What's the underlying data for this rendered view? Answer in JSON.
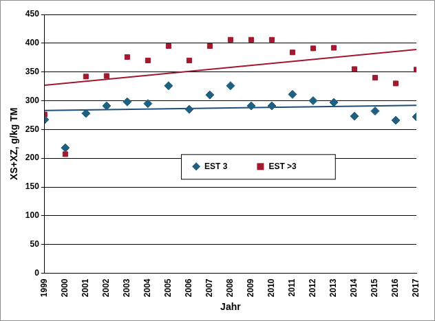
{
  "chart_data": {
    "type": "scatter",
    "x_label": "Jahr",
    "y_label": "XS+XZ, g/kg TM",
    "x": [
      1999,
      2000,
      2001,
      2002,
      2003,
      2004,
      2005,
      2006,
      2007,
      2008,
      2009,
      2010,
      2011,
      2012,
      2013,
      2014,
      2015,
      2016,
      2017
    ],
    "series": [
      {
        "name": "EST 3",
        "color": "#1f5f7f",
        "marker": "diamond",
        "values": [
          267,
          218,
          278,
          291,
          298,
          295,
          326,
          285,
          310,
          326,
          291,
          291,
          311,
          300,
          297,
          273,
          282,
          266,
          272
        ]
      },
      {
        "name": "EST >3",
        "color": "#a3192f",
        "marker": "square",
        "values": [
          276,
          207,
          342,
          343,
          376,
          370,
          395,
          370,
          395,
          406,
          406,
          406,
          384,
          391,
          392,
          355,
          340,
          330,
          354
        ]
      },
      {
        "type": "line",
        "color": "#1f4e79",
        "line_style": "solid",
        "x": [
          1999,
          2017
        ],
        "values": [
          283,
          292
        ]
      },
      {
        "type": "line",
        "color": "#a3162d",
        "line_style": "solid",
        "x": [
          1999,
          2017
        ],
        "values": [
          327,
          389
        ]
      }
    ],
    "xlim": [
      1999,
      2017
    ],
    "xticks": [
      1999,
      2000,
      2001,
      2002,
      2003,
      2004,
      2005,
      2006,
      2007,
      2008,
      2009,
      2010,
      2011,
      2012,
      2013,
      2014,
      2015,
      2016,
      2017
    ],
    "ylim": [
      0,
      450
    ],
    "yticks": [
      0,
      50,
      100,
      150,
      200,
      250,
      300,
      350,
      400,
      450
    ],
    "grid": true,
    "legend": "center"
  }
}
